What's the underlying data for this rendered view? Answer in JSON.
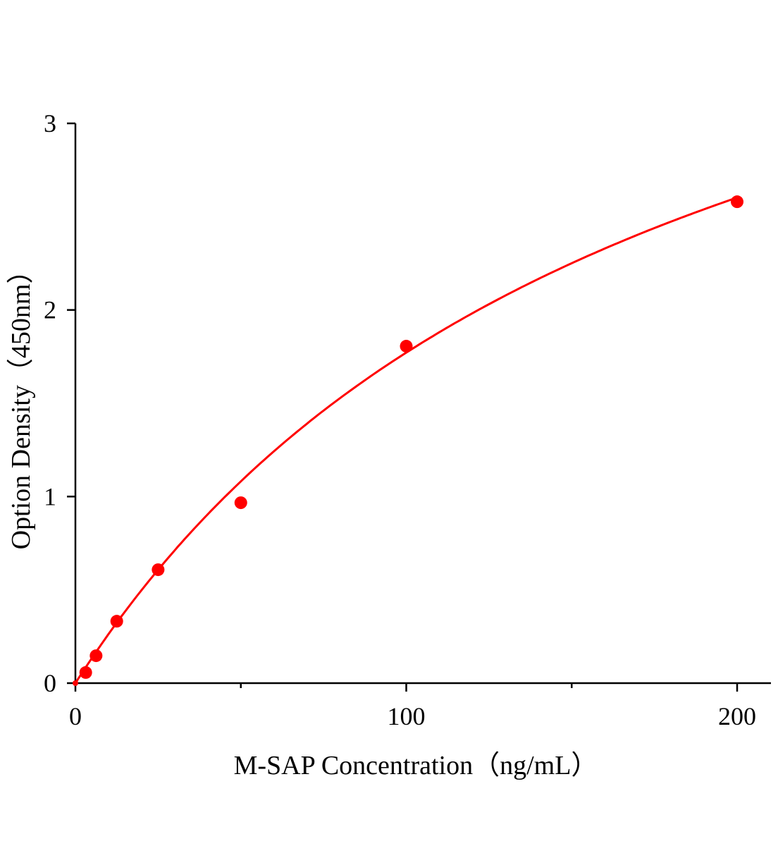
{
  "chart_data": {
    "type": "scatter",
    "title": "",
    "xlabel": "M-SAP Concentration（ng/mL）",
    "ylabel": "Option Density（450nm）",
    "xlim": [
      0,
      210
    ],
    "ylim": [
      0,
      3
    ],
    "xticks": [
      0,
      100,
      200
    ],
    "xticks_minor": [
      50,
      150
    ],
    "yticks": [
      0,
      1,
      2,
      3
    ],
    "grid": false,
    "legend": "none",
    "colors": {
      "points": "#ff0000",
      "curve": "#ff0000",
      "axis": "#000000"
    },
    "series": [
      {
        "x": [
          0,
          3.125,
          6.25,
          12.5,
          25,
          50,
          100,
          200
        ],
        "y": [
          0.0,
          0.057,
          0.147,
          0.332,
          0.608,
          0.967,
          1.806,
          2.58
        ]
      }
    ],
    "fit_curve": {
      "model": "saturating",
      "a": 4.9,
      "b": 176.6
    }
  }
}
